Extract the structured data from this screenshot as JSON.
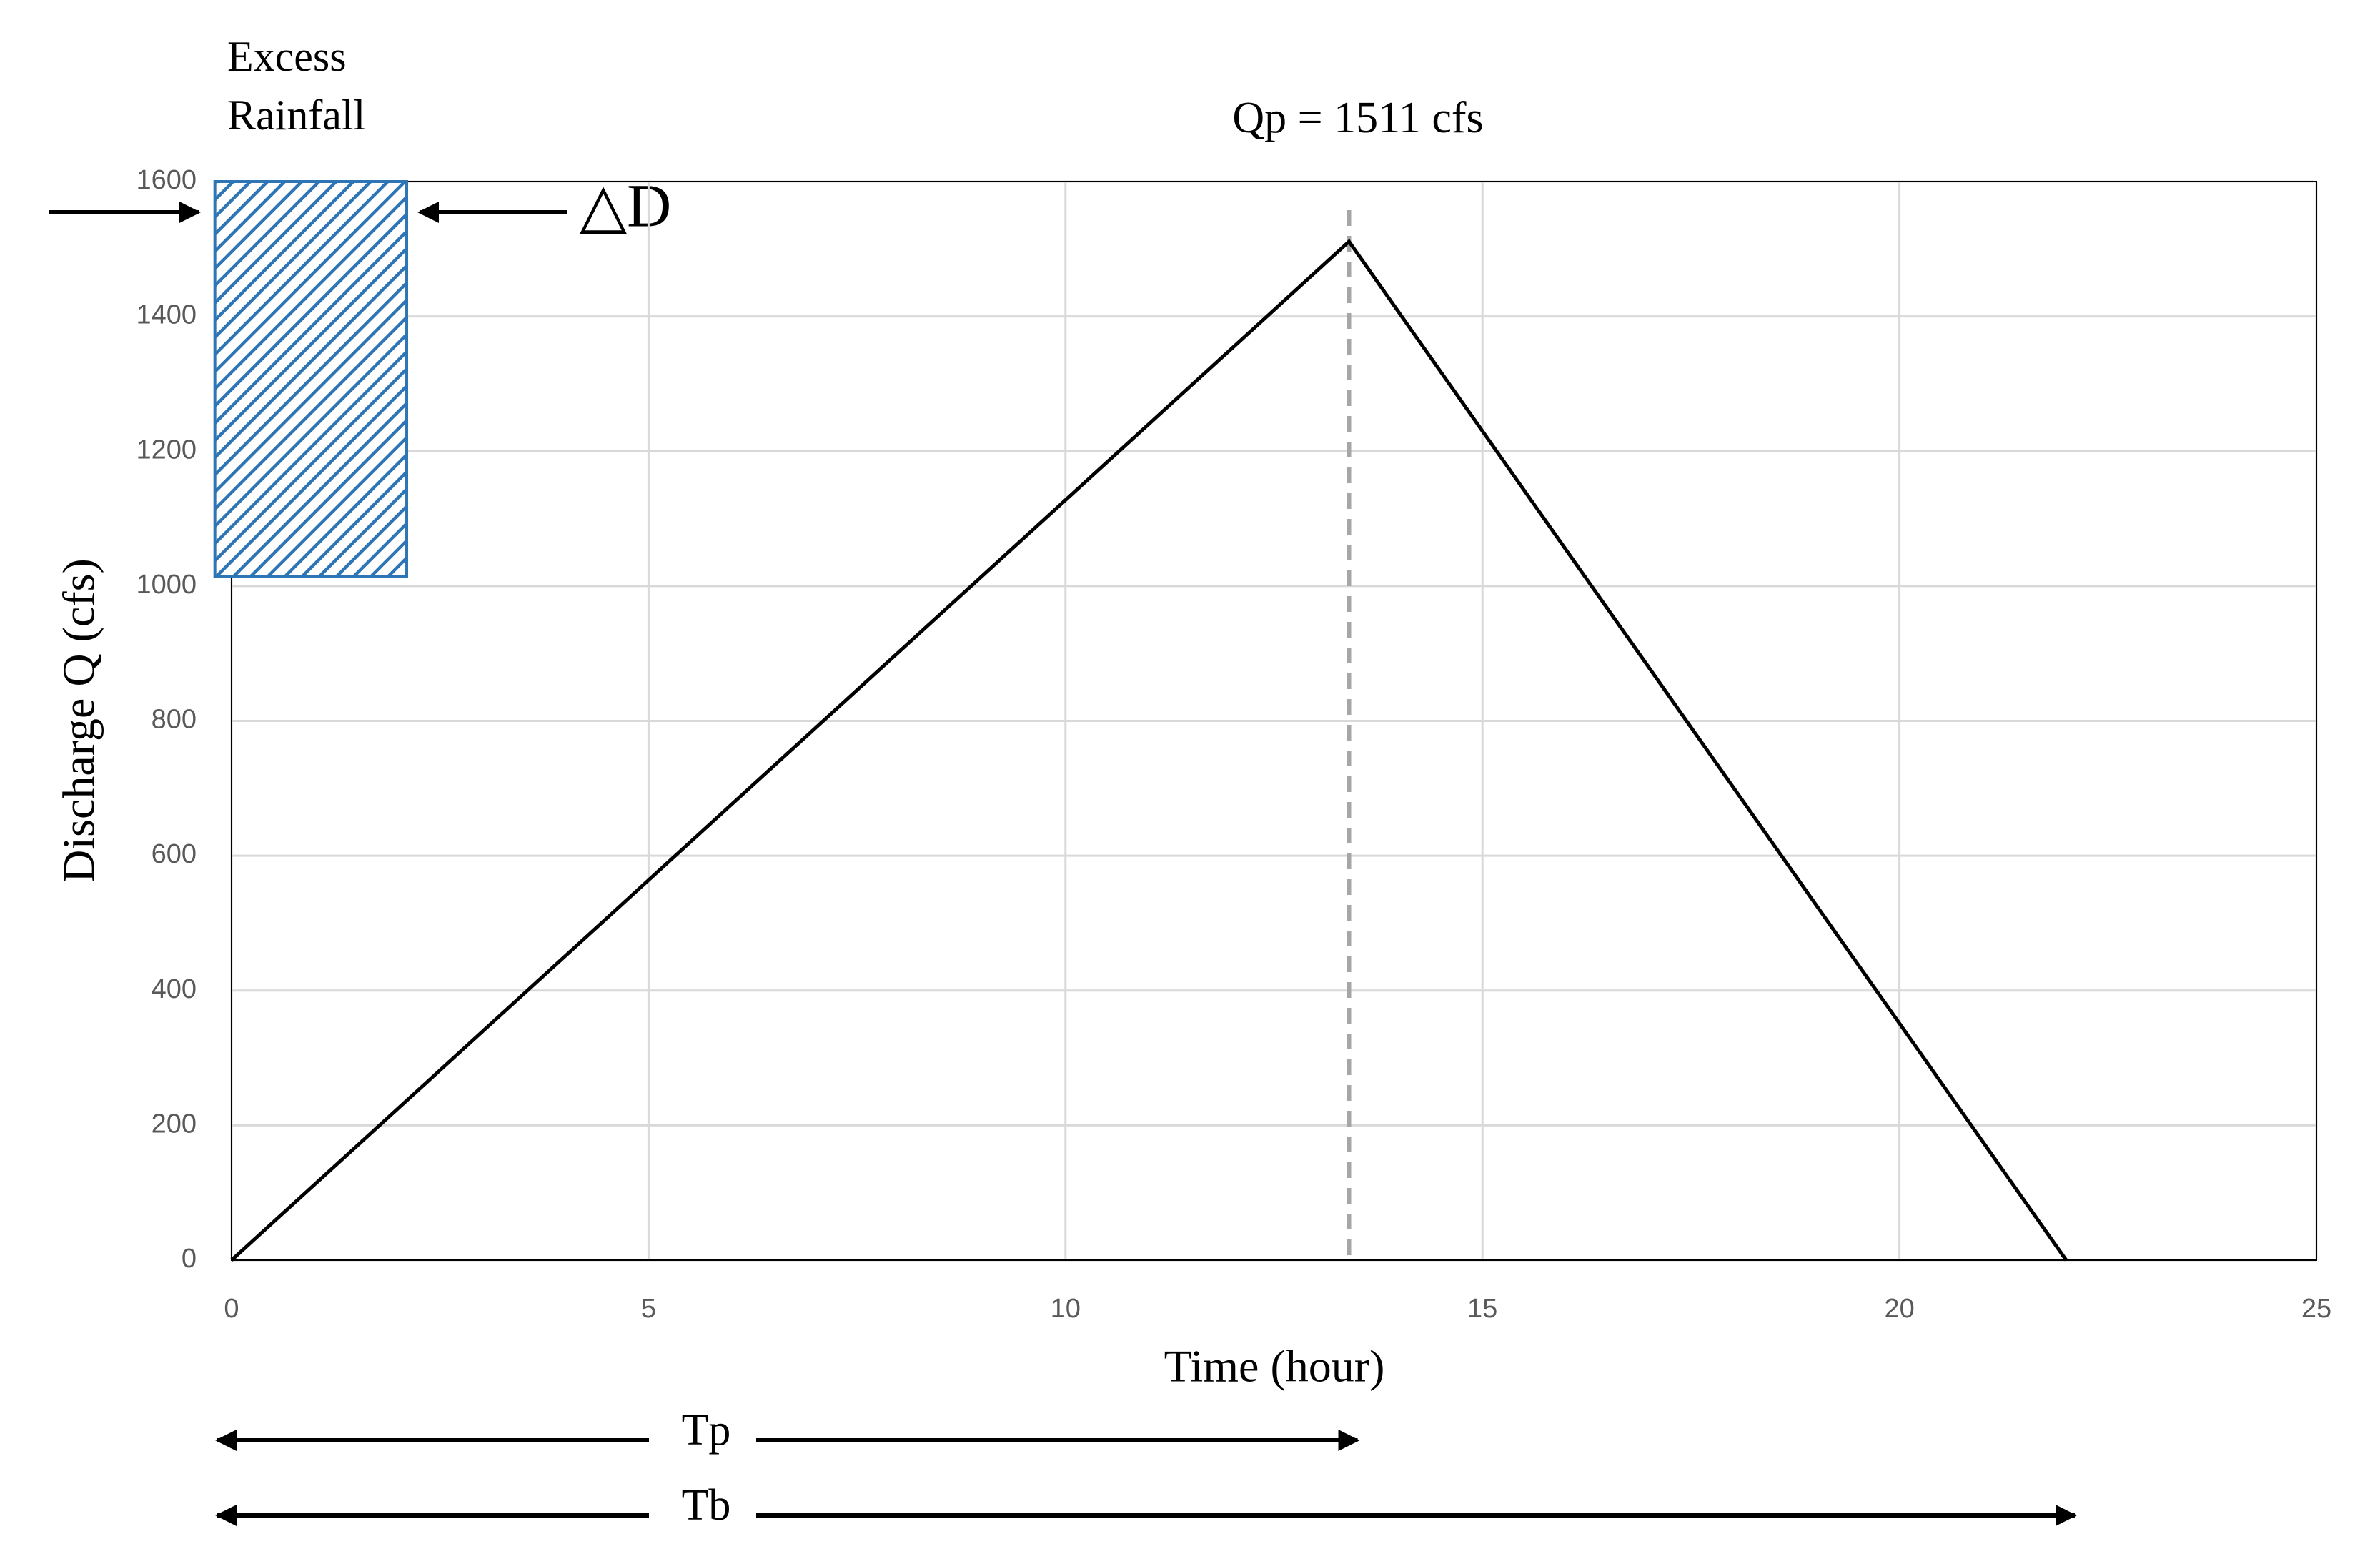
{
  "chart_data": {
    "type": "line",
    "x_label": "Time (hour)",
    "y_label": "Discharge Q (cfs)",
    "x": [
      0,
      13.4,
      22
    ],
    "series": [
      {
        "values": [
          0,
          1511,
          0
        ],
        "color": "#000000"
      }
    ],
    "xlim": [
      0,
      25
    ],
    "xticks": [
      0,
      5,
      10,
      15,
      20,
      25
    ],
    "ylim": [
      0,
      1600
    ],
    "yticks": [
      0,
      200,
      400,
      600,
      800,
      1000,
      1200,
      1400,
      1600
    ],
    "grid": true,
    "peak_label": "Qp = 1511 cfs",
    "tp_label": "Tp",
    "tb_label": "Tb",
    "delta_label": "△D",
    "excess_rainfall": {
      "label": [
        "Excess",
        "Rainfall"
      ],
      "x": [
        -0.2,
        2.1
      ],
      "y": [
        1014,
        1600
      ],
      "color": "#2e75b6"
    }
  }
}
